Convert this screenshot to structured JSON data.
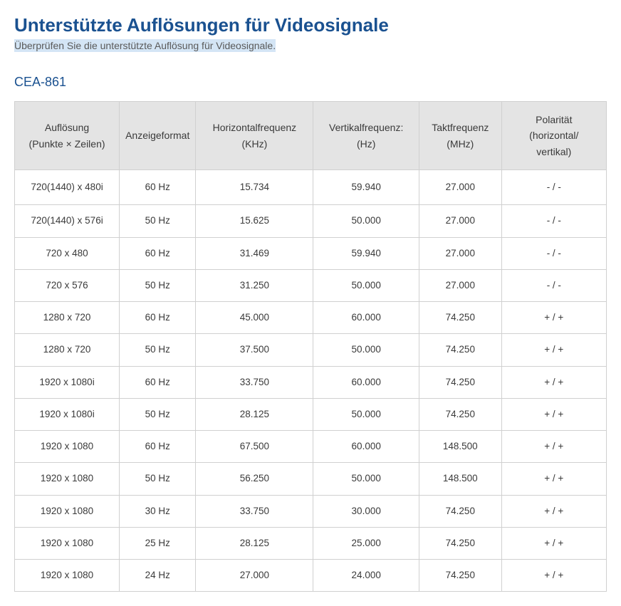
{
  "main_title": "Unterstützte Auflösungen für Videosignale",
  "subtitle": "Überprüfen Sie die unterstützte Auflösung für Videosignale.",
  "section_title": "CEA-861",
  "table": {
    "columns": [
      "Auflösung\n(Punkte × Zeilen)",
      "Anzeigeformat",
      "Horizontalfrequenz\n(KHz)",
      "Vertikalfrequenz:\n(Hz)",
      "Taktfrequenz\n(MHz)",
      "Polarität\n(horizontal/\nvertikal)"
    ],
    "rows": [
      [
        "720(1440) x 480i",
        "60 Hz",
        "15.734",
        "59.940",
        "27.000",
        "- / -"
      ],
      [
        "720(1440) x 576i",
        "50 Hz",
        "15.625",
        "50.000",
        "27.000",
        "- / -"
      ],
      [
        "720 x 480",
        "60 Hz",
        "31.469",
        "59.940",
        "27.000",
        "- / -"
      ],
      [
        "720 x 576",
        "50 Hz",
        "31.250",
        "50.000",
        "27.000",
        "- / -"
      ],
      [
        "1280 x 720",
        "60 Hz",
        "45.000",
        "60.000",
        "74.250",
        "+ / +"
      ],
      [
        "1280 x 720",
        "50 Hz",
        "37.500",
        "50.000",
        "74.250",
        "+ / +"
      ],
      [
        "1920 x 1080i",
        "60 Hz",
        "33.750",
        "60.000",
        "74.250",
        "+ / +"
      ],
      [
        "1920 x 1080i",
        "50 Hz",
        "28.125",
        "50.000",
        "74.250",
        "+ / +"
      ],
      [
        "1920 x 1080",
        "60 Hz",
        "67.500",
        "60.000",
        "148.500",
        "+ / +"
      ],
      [
        "1920 x 1080",
        "50 Hz",
        "56.250",
        "50.000",
        "148.500",
        "+ / +"
      ],
      [
        "1920 x 1080",
        "30 Hz",
        "33.750",
        "30.000",
        "74.250",
        "+ / +"
      ],
      [
        "1920 x 1080",
        "25 Hz",
        "28.125",
        "25.000",
        "74.250",
        "+ / +"
      ],
      [
        "1920 x 1080",
        "24 Hz",
        "27.000",
        "24.000",
        "74.250",
        "+ / +"
      ]
    ]
  },
  "styling": {
    "title_color": "#1a5190",
    "title_fontsize": 26,
    "subtitle_color": "#5a5a5a",
    "subtitle_bg": "#d4e5f5",
    "subtitle_fontsize": 14,
    "section_title_color": "#1a5190",
    "section_title_fontsize": 18,
    "header_bg": "#e4e4e4",
    "header_text_color": "#3a3a3a",
    "header_fontsize": 14,
    "cell_text_color": "#3a3a3a",
    "cell_fontsize": 13.5,
    "border_color": "#d0d0d0",
    "background_color": "#ffffff",
    "column_widths": [
      "18%",
      "12%",
      "20%",
      "18%",
      "14%",
      "18%"
    ]
  }
}
